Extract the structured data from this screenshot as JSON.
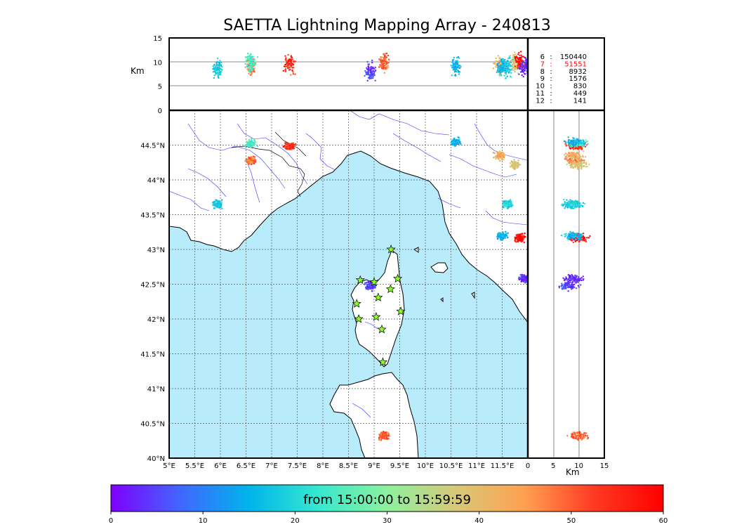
{
  "title": "SAETTA Lightning Mapping Array - 240813",
  "time_range_label": "from 15:00:00 to 15:59:59",
  "km_label": "Km",
  "lon_ticks": [
    "5°E",
    "5.5°E",
    "6°E",
    "6.5°E",
    "7°E",
    "7.5°E",
    "8°E",
    "8.5°E",
    "9°E",
    "9.5°E",
    "10°E",
    "10.5°E",
    "11°E",
    "11.5°E"
  ],
  "lat_ticks": [
    "40°N",
    "40.5°N",
    "41°N",
    "41.5°N",
    "42°N",
    "42.5°N",
    "43°N",
    "43.5°N",
    "44°N",
    "44.5°N"
  ],
  "altitude_ticks": [
    "0",
    "5",
    "10",
    "15"
  ],
  "side_km_ticks": [
    "0",
    "5",
    "10",
    "15"
  ],
  "colorbar_ticks": [
    "0",
    "10",
    "20",
    "30",
    "40",
    "50",
    "60"
  ],
  "station_counts": [
    {
      "stations": "6",
      "sep": ":",
      "count": "150440",
      "highlight": false
    },
    {
      "stations": "7",
      "sep": ":",
      "count": "51551",
      "highlight": true
    },
    {
      "stations": "8",
      "sep": ":",
      "count": "8932",
      "highlight": false
    },
    {
      "stations": "9",
      "sep": ":",
      "count": "1576",
      "highlight": false
    },
    {
      "stations": "10",
      "sep": ":",
      "count": "830",
      "highlight": false
    },
    {
      "stations": "11",
      "sep": ":",
      "count": "449",
      "highlight": false
    },
    {
      "stations": "12",
      "sep": ":",
      "count": "141",
      "highlight": false
    }
  ],
  "colors": {
    "sea": "#b9ecfb",
    "coast": "#000000",
    "rivers": "#3333ff",
    "grid": "#555555",
    "station_marker": "#88ff22",
    "highlight_count": "#ff0000"
  },
  "colorbar_colors": [
    "#7f00ff",
    "#4166ff",
    "#00b4ec",
    "#36e8d0",
    "#8cf19e",
    "#d8c878",
    "#ffa050",
    "#ff3a22",
    "#ff0000"
  ],
  "map_extent": {
    "lon": [
      5,
      12
    ],
    "lat": [
      40,
      45
    ]
  },
  "altitude_range_km": [
    0,
    15
  ],
  "time_range_minutes": [
    0,
    60
  ],
  "stations": [
    {
      "lon": 9.33,
      "lat": 43.0
    },
    {
      "lon": 8.73,
      "lat": 42.56
    },
    {
      "lon": 9.0,
      "lat": 42.53
    },
    {
      "lon": 9.46,
      "lat": 42.58
    },
    {
      "lon": 9.32,
      "lat": 42.43
    },
    {
      "lon": 9.08,
      "lat": 42.31
    },
    {
      "lon": 8.66,
      "lat": 42.22
    },
    {
      "lon": 9.52,
      "lat": 42.11
    },
    {
      "lon": 8.7,
      "lat": 42.0
    },
    {
      "lon": 9.04,
      "lat": 42.03
    },
    {
      "lon": 9.15,
      "lat": 41.85
    },
    {
      "lon": 9.17,
      "lat": 41.38
    }
  ],
  "lightning_clusters": [
    {
      "lon": 7.35,
      "lat": 44.48,
      "time_min": 55,
      "alt_km": 9.5
    },
    {
      "lon": 6.6,
      "lat": 44.28,
      "time_min": 48,
      "alt_km": 9
    },
    {
      "lon": 6.6,
      "lat": 44.52,
      "time_min": 25,
      "alt_km": 10
    },
    {
      "lon": 5.95,
      "lat": 43.65,
      "time_min": 18,
      "alt_km": 8.5
    },
    {
      "lon": 8.92,
      "lat": 42.47,
      "time_min": 5,
      "alt_km": 8
    },
    {
      "lon": 9.2,
      "lat": 40.32,
      "time_min": 50,
      "alt_km": 10
    },
    {
      "lon": 10.6,
      "lat": 44.55,
      "time_min": 15,
      "alt_km": 9
    },
    {
      "lon": 11.75,
      "lat": 44.22,
      "time_min": 38,
      "alt_km": 10
    },
    {
      "lon": 11.45,
      "lat": 44.35,
      "time_min": 42,
      "alt_km": 9
    },
    {
      "lon": 11.6,
      "lat": 43.65,
      "time_min": 20,
      "alt_km": 9
    },
    {
      "lon": 11.85,
      "lat": 43.17,
      "time_min": 58,
      "alt_km": 10
    },
    {
      "lon": 11.5,
      "lat": 43.2,
      "time_min": 15,
      "alt_km": 9
    },
    {
      "lon": 11.95,
      "lat": 42.58,
      "time_min": 3,
      "alt_km": 9
    }
  ]
}
